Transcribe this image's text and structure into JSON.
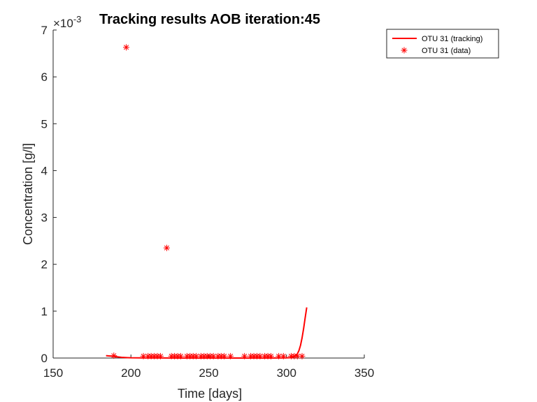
{
  "chart_data": {
    "type": "line",
    "title": "Tracking results AOB iteration:45",
    "xlabel": "Time [days]",
    "ylabel": "Concentration [g/l]",
    "xlim": [
      150,
      350
    ],
    "ylim": [
      0,
      0.007
    ],
    "x_ticks": [
      150,
      200,
      250,
      300,
      350
    ],
    "x_tick_labels": [
      "150",
      "200",
      "250",
      "300",
      "350"
    ],
    "y_ticks": [
      0,
      0.001,
      0.002,
      0.003,
      0.004,
      0.005,
      0.006,
      0.007
    ],
    "y_tick_labels": [
      "0",
      "1",
      "2",
      "3",
      "4",
      "5",
      "6",
      "7"
    ],
    "y_exponent_label": "×10",
    "y_exponent_power": "-3",
    "grid": false,
    "box": "left-bottom",
    "legend_placement": "top-right",
    "series": [
      {
        "name": "OTU 31 (tracking)",
        "style": "line",
        "color": "#ff0000",
        "x": [
          184,
          186,
          188,
          190,
          192,
          194,
          196,
          198,
          200,
          205,
          210,
          220,
          240,
          260,
          280,
          295,
          300,
          303,
          305,
          306,
          307,
          308,
          309,
          310,
          311,
          312,
          313
        ],
        "y": [
          5e-05,
          4.5e-05,
          4e-05,
          3e-05,
          2.2e-05,
          1.5e-05,
          1.2e-05,
          8e-06,
          5e-06,
          3e-06,
          2e-06,
          1e-06,
          5e-07,
          3e-07,
          3e-07,
          1e-06,
          4e-06,
          1e-05,
          3e-05,
          5e-05,
          9e-05,
          0.00016,
          0.00027,
          0.00043,
          0.00063,
          0.00086,
          0.00108
        ]
      },
      {
        "name": "OTU 31 (data)",
        "style": "marker",
        "marker": "*",
        "color": "#ff0000",
        "x": [
          189,
          197,
          208,
          211,
          213,
          215,
          217,
          219,
          223,
          226,
          228,
          230,
          232,
          236,
          238,
          240,
          242,
          245,
          247,
          249,
          251,
          253,
          256,
          258,
          260,
          264,
          273,
          277,
          279,
          281,
          283,
          286,
          288,
          290,
          295,
          298,
          303,
          305,
          307,
          310
        ],
        "y": [
          5e-05,
          0.00663,
          4e-05,
          4e-05,
          4e-05,
          4e-05,
          4e-05,
          4e-05,
          0.00235,
          4e-05,
          4e-05,
          4e-05,
          4e-05,
          4e-05,
          4e-05,
          4e-05,
          4e-05,
          4e-05,
          4e-05,
          4e-05,
          4e-05,
          4e-05,
          4e-05,
          4e-05,
          4e-05,
          4e-05,
          4e-05,
          4e-05,
          4e-05,
          4e-05,
          4e-05,
          4e-05,
          4e-05,
          4e-05,
          4e-05,
          4e-05,
          4e-05,
          4e-05,
          4e-05,
          4e-05
        ]
      }
    ]
  }
}
